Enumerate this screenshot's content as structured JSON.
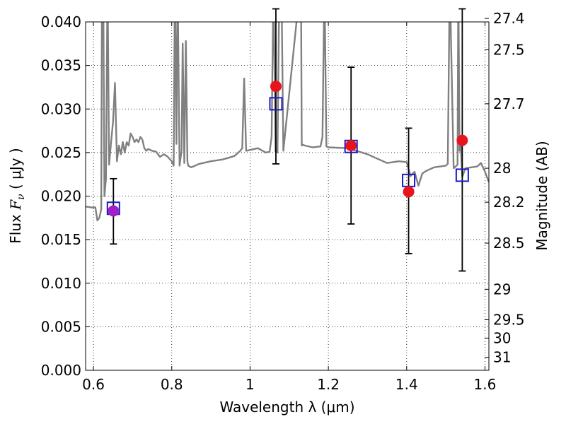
{
  "chart_data": {
    "type": "scatter",
    "xlabel": "Wavelength  λ (μm)",
    "ylabel": "Flux  F_ν  ( μJy )",
    "ylabel_parts": {
      "prefix": "Flux  ",
      "symbol": "F",
      "subscript": "ν",
      "suffix": "  ( μJy )"
    },
    "y2label": "Magnitude (AB)",
    "xlim": [
      0.58,
      1.61
    ],
    "ylim": [
      0.0,
      0.04
    ],
    "grid": true,
    "legend": "none",
    "x_ticks": [
      0.6,
      0.8,
      1.0,
      1.2,
      1.4,
      1.6
    ],
    "x_tick_labels": [
      "0.6",
      "0.8",
      "1",
      "1.2",
      "1.4",
      "1.6"
    ],
    "y_ticks": [
      0.0,
      0.005,
      0.01,
      0.015,
      0.02,
      0.025,
      0.03,
      0.035,
      0.04
    ],
    "y_tick_labels": [
      "0.000",
      "0.005",
      "0.010",
      "0.015",
      "0.020",
      "0.025",
      "0.030",
      "0.035",
      "0.040"
    ],
    "y2_ticks": [
      {
        "label": "27.4",
        "flux": 0.0404
      },
      {
        "label": "27.5",
        "flux": 0.0368
      },
      {
        "label": "27.7",
        "flux": 0.0306
      },
      {
        "label": "28",
        "flux": 0.0232
      },
      {
        "label": "28.2",
        "flux": 0.0193
      },
      {
        "label": "28.5",
        "flux": 0.0146
      },
      {
        "label": "29",
        "flux": 0.0093
      },
      {
        "label": "29.5",
        "flux": 0.0058
      },
      {
        "label": "30",
        "flux": 0.0037
      },
      {
        "label": "31",
        "flux": 0.0015
      }
    ],
    "series": [
      {
        "type": "line",
        "color": "#808080",
        "x": [
          0.58,
          0.595,
          0.605,
          0.61,
          0.615,
          0.62,
          0.622,
          0.625,
          0.628,
          0.632,
          0.636,
          0.64,
          0.645,
          0.65,
          0.655,
          0.66,
          0.665,
          0.67,
          0.675,
          0.68,
          0.685,
          0.69,
          0.695,
          0.7,
          0.705,
          0.71,
          0.715,
          0.72,
          0.725,
          0.73,
          0.735,
          0.74,
          0.75,
          0.76,
          0.77,
          0.78,
          0.79,
          0.8,
          0.805,
          0.808,
          0.812,
          0.815,
          0.82,
          0.825,
          0.828,
          0.832,
          0.836,
          0.84,
          0.842,
          0.85,
          0.87,
          0.9,
          0.93,
          0.96,
          0.975,
          0.98,
          0.985,
          0.99,
          1.0,
          1.02,
          1.04,
          1.05,
          1.055,
          1.06,
          1.065,
          1.07,
          1.075,
          1.08,
          1.085,
          1.13,
          1.132,
          1.135,
          1.14,
          1.16,
          1.18,
          1.185,
          1.19,
          1.195,
          1.2,
          1.25,
          1.3,
          1.35,
          1.38,
          1.4,
          1.41,
          1.42,
          1.43,
          1.44,
          1.45,
          1.47,
          1.5,
          1.505,
          1.51,
          1.52,
          1.53,
          1.532,
          1.535,
          1.538,
          1.542,
          1.55,
          1.58,
          1.59,
          1.6,
          1.61
        ],
        "y": [
          0.0188,
          0.0187,
          0.0187,
          0.0172,
          0.0175,
          0.0185,
          0.045,
          0.045,
          0.02,
          0.022,
          0.045,
          0.0236,
          0.0262,
          0.0285,
          0.033,
          0.024,
          0.0258,
          0.0248,
          0.0262,
          0.025,
          0.0262,
          0.0258,
          0.0272,
          0.0268,
          0.0262,
          0.0265,
          0.0262,
          0.0268,
          0.0265,
          0.0255,
          0.0252,
          0.0254,
          0.0252,
          0.0251,
          0.0245,
          0.0248,
          0.0245,
          0.024,
          0.0235,
          0.045,
          0.026,
          0.045,
          0.0235,
          0.0252,
          0.0375,
          0.0238,
          0.0378,
          0.024,
          0.0235,
          0.0233,
          0.0237,
          0.024,
          0.0242,
          0.0246,
          0.0252,
          0.0255,
          0.0335,
          0.0252,
          0.0253,
          0.0255,
          0.025,
          0.0251,
          0.0268,
          0.045,
          0.0251,
          0.025,
          0.045,
          0.045,
          0.0252,
          0.045,
          0.0258,
          0.0259,
          0.0258,
          0.0256,
          0.0257,
          0.0268,
          0.045,
          0.0257,
          0.0256,
          0.0255,
          0.0248,
          0.0238,
          0.024,
          0.0239,
          0.0223,
          0.0228,
          0.0212,
          0.0226,
          0.0229,
          0.0233,
          0.0235,
          0.0237,
          0.045,
          0.0232,
          0.0236,
          0.045,
          0.0252,
          0.0258,
          0.0222,
          0.0232,
          0.0234,
          0.0238,
          0.0228,
          0.0216
        ]
      },
      {
        "type": "errorbar",
        "color": "#000000",
        "points": [
          {
            "x": 0.651,
            "y": 0.0183,
            "ylo": 0.0145,
            "yhi": 0.022
          },
          {
            "x": 1.066,
            "y": 0.0326,
            "ylo": 0.0237,
            "yhi": 0.0415
          },
          {
            "x": 1.258,
            "y": 0.0258,
            "ylo": 0.0168,
            "yhi": 0.0348
          },
          {
            "x": 1.405,
            "y": 0.0205,
            "ylo": 0.0134,
            "yhi": 0.0278
          },
          {
            "x": 1.542,
            "y": 0.0264,
            "ylo": 0.0114,
            "yhi": 0.0415
          }
        ]
      },
      {
        "type": "marker-square-open",
        "color": "#1a1acc",
        "x": [
          0.651,
          1.066,
          1.258,
          1.405,
          1.542
        ],
        "y": [
          0.0186,
          0.0306,
          0.0257,
          0.0218,
          0.0224
        ]
      },
      {
        "type": "marker-circle",
        "color": "#e8141d",
        "x": [
          1.066,
          1.258,
          1.405,
          1.542
        ],
        "y": [
          0.0326,
          0.0258,
          0.0205,
          0.0264
        ]
      },
      {
        "type": "marker-circle",
        "color": "#a020c8",
        "x": [
          0.651
        ],
        "y": [
          0.0183
        ]
      }
    ]
  }
}
